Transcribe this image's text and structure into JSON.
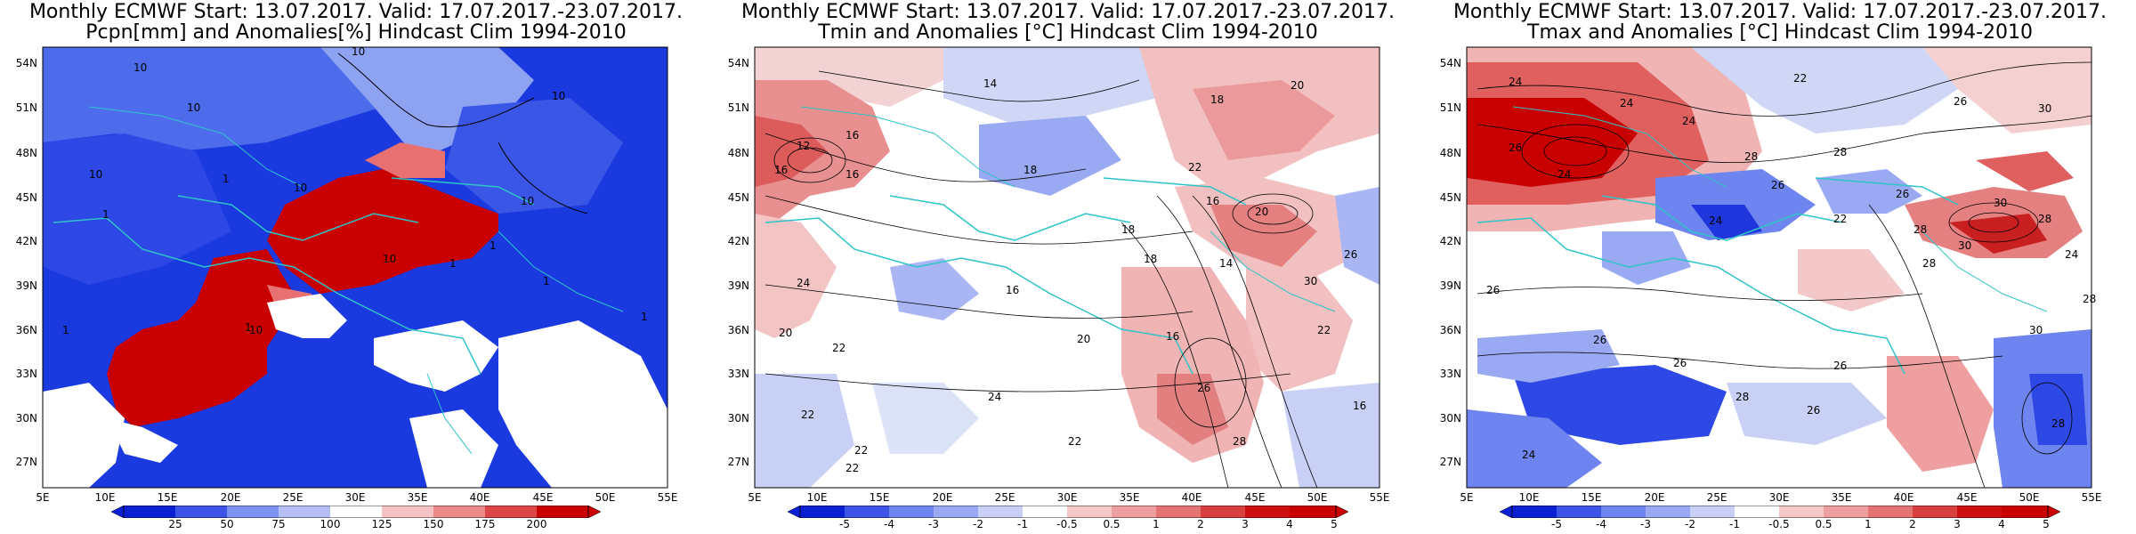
{
  "panels": [
    {
      "title_line1": "Monthly ECMWF Start: 13.07.2017. Valid: 17.07.2017.-23.07.2017.",
      "title_line2": "Pcpn[mm] and Anomalies[%] Hindcast Clim 1994-2010",
      "colorbar_labels": [
        "25",
        "50",
        "75",
        "100",
        "125",
        "150",
        "175",
        "200"
      ],
      "contour_labels": [
        "10",
        "10",
        "10",
        "10",
        "10",
        "10",
        "10",
        "10",
        "10",
        "1",
        "1",
        "1",
        "1",
        "1",
        "1",
        "1",
        "1"
      ]
    },
    {
      "title_line1": "Monthly ECMWF Start: 13.07.2017. Valid: 17.07.2017.-23.07.2017.",
      "title_line2": "Tmin and Anomalies [°C] Hindcast Clim 1994-2010",
      "colorbar_labels": [
        "-5",
        "-4",
        "-3",
        "-2",
        "-1",
        "-0.5",
        "0.5",
        "1",
        "2",
        "3",
        "4",
        "5"
      ],
      "contour_labels": [
        "14",
        "18",
        "20",
        "16",
        "12",
        "16",
        "16",
        "18",
        "22",
        "16",
        "18",
        "20",
        "14",
        "18",
        "16",
        "24",
        "20",
        "26",
        "22",
        "16",
        "20",
        "22",
        "24",
        "22",
        "22",
        "26",
        "22",
        "28",
        "30",
        "16",
        "22"
      ]
    },
    {
      "title_line1": "Monthly ECMWF Start: 13.07.2017. Valid: 17.07.2017.-23.07.2017.",
      "title_line2": "Tmax and Anomalies [°C] Hindcast Clim 1994-2010",
      "colorbar_labels": [
        "-5",
        "-4",
        "-3",
        "-2",
        "-1",
        "-0.5",
        "0.5",
        "1",
        "2",
        "3",
        "4",
        "5"
      ],
      "contour_labels": [
        "22",
        "24",
        "26",
        "30",
        "24",
        "24",
        "26",
        "24",
        "28",
        "28",
        "30",
        "26",
        "26",
        "24",
        "22",
        "28",
        "30",
        "28",
        "28",
        "26",
        "24",
        "28",
        "26",
        "26",
        "26",
        "30",
        "28",
        "26",
        "24",
        "28"
      ]
    }
  ],
  "lat_labels": [
    "54N",
    "51N",
    "48N",
    "45N",
    "42N",
    "39N",
    "36N",
    "33N",
    "30N",
    "27N"
  ],
  "lon_labels": [
    "5E",
    "10E",
    "15E",
    "20E",
    "25E",
    "30E",
    "35E",
    "40E",
    "45E",
    "50E",
    "55E"
  ],
  "colors": {
    "anomaly_negative_strong": "#0a1ed2",
    "anomaly_negative_weak": "#b4bef5",
    "anomaly_positive_weak": "#f5c3c3",
    "anomaly_positive_strong": "#c80000",
    "coastline": "#2ec4c8",
    "contour": "#000000"
  }
}
